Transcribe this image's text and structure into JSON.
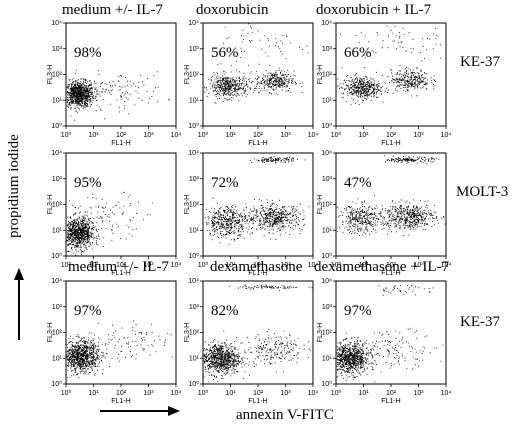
{
  "chart_data": {
    "type": "scatter",
    "figure": "flow cytometry panels (3 x 3)",
    "global_xlabel": "annexin V-FITC",
    "global_ylabel": "propidium iodide",
    "panel_xlabel": "FL1-H",
    "panel_ylabel": "FL3-H",
    "xscale": "log",
    "yscale": "log",
    "xlim": [
      1,
      10000
    ],
    "ylim": [
      1,
      10000
    ],
    "tick_labels": [
      "10⁰",
      "10¹",
      "10²",
      "10³",
      "10⁴"
    ],
    "top_column_titles": [
      "medium +/- IL-7",
      "doxorubicin",
      "doxorubicin + IL-7"
    ],
    "bottom_column_titles": [
      "medium +/- IL-7",
      "dexamethasone",
      "dexamethasone + IL-7"
    ],
    "row_labels": [
      "KE-37",
      "MOLT-3",
      "KE-37"
    ],
    "panels": [
      {
        "row": 0,
        "col": 0,
        "percent": "98%"
      },
      {
        "row": 0,
        "col": 1,
        "percent": "56%"
      },
      {
        "row": 0,
        "col": 2,
        "percent": "66%"
      },
      {
        "row": 1,
        "col": 0,
        "percent": "95%"
      },
      {
        "row": 1,
        "col": 1,
        "percent": "72%"
      },
      {
        "row": 1,
        "col": 2,
        "percent": "47%"
      },
      {
        "row": 2,
        "col": 0,
        "percent": "97%"
      },
      {
        "row": 2,
        "col": 1,
        "percent": "82%"
      },
      {
        "row": 2,
        "col": 2,
        "percent": "97%"
      }
    ]
  }
}
